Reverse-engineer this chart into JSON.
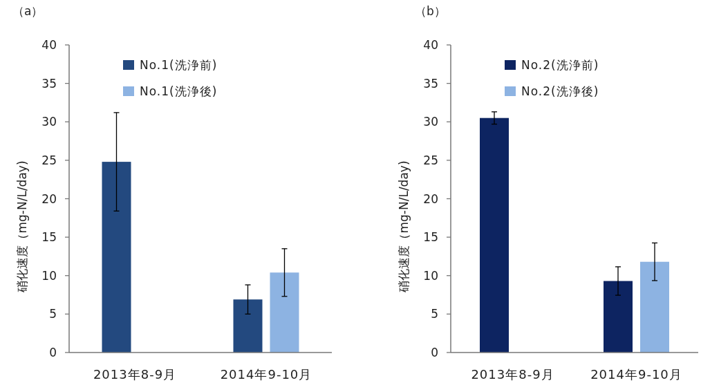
{
  "chart_data": [
    {
      "type": "bar",
      "title": "（a）",
      "ylabel": "硝化速度（mg-N/L/day)",
      "categories": [
        "2013年8-9月",
        "2014年9-10月"
      ],
      "series": [
        {
          "name": "No.1(洗浄前)",
          "color": "#23497f",
          "values": [
            24.8,
            6.9
          ],
          "errors": [
            6.4,
            1.9
          ]
        },
        {
          "name": "No.1(洗浄後)",
          "color": "#8db3e2",
          "values": [
            null,
            10.4
          ],
          "errors": [
            null,
            3.1
          ]
        }
      ],
      "ylim": [
        0,
        40
      ],
      "yticks": [
        0,
        5,
        10,
        15,
        20,
        25,
        30,
        35,
        40
      ],
      "legend": "top",
      "grid": false
    },
    {
      "type": "bar",
      "title": "（b）",
      "ylabel": "硝化速度（mg-N/L/day)",
      "categories": [
        "2013年8-9月",
        "2014年9-10月"
      ],
      "series": [
        {
          "name": "No.2(洗浄前)",
          "color": "#0d2461",
          "values": [
            30.5,
            9.3
          ],
          "errors": [
            0.8,
            1.85
          ]
        },
        {
          "name": "No.2(洗浄後)",
          "color": "#8db3e2",
          "values": [
            null,
            11.8
          ],
          "errors": [
            null,
            2.45
          ]
        }
      ],
      "ylim": [
        0,
        40
      ],
      "yticks": [
        0,
        5,
        10,
        15,
        20,
        25,
        30,
        35,
        40
      ],
      "legend": "top",
      "grid": false
    }
  ]
}
